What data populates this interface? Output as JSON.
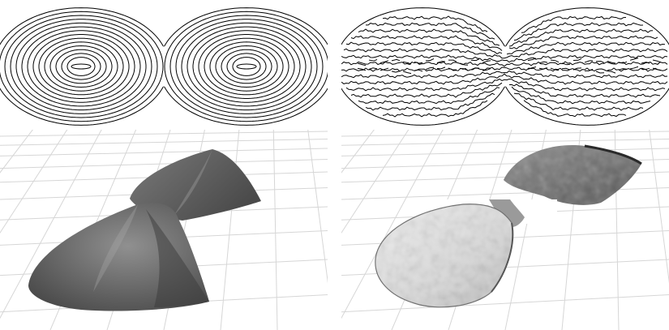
{
  "figure": {
    "panels": [
      {
        "id": "contour-a",
        "kind": "contour-plot",
        "style": "smooth concentric level sets"
      },
      {
        "id": "contour-b",
        "kind": "contour-plot",
        "style": "noisy parallel level sets"
      },
      {
        "id": "surface-a",
        "kind": "3d-surface",
        "style": "smooth cone-shaped double peak"
      },
      {
        "id": "surface-b",
        "kind": "3d-surface",
        "style": "noisy concave double lobe"
      }
    ],
    "colors": {
      "background": "#ffffff",
      "contour_line": "#000000",
      "grid_line": "#d0d0d0",
      "surface_dark": "#6b6b6b",
      "surface_light": "#e6e6e6"
    }
  }
}
